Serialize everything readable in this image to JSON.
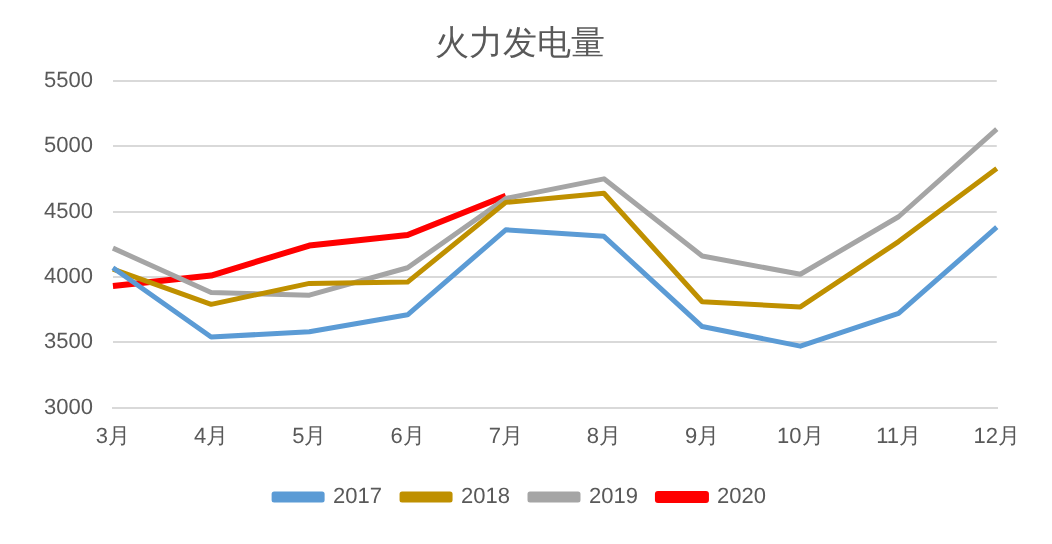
{
  "chart_data": {
    "type": "line",
    "title": "火力发电量",
    "categories": [
      "3月",
      "4月",
      "5月",
      "6月",
      "7月",
      "8月",
      "9月",
      "10月",
      "11月",
      "12月"
    ],
    "series": [
      {
        "name": "2017",
        "color": "#5b9bd5",
        "values": [
          4070,
          3540,
          3580,
          3710,
          4360,
          4310,
          3620,
          3470,
          3720,
          4380
        ]
      },
      {
        "name": "2018",
        "color": "#bf9000",
        "values": [
          4060,
          3790,
          3950,
          3960,
          4570,
          4640,
          3810,
          3770,
          4270,
          4830
        ]
      },
      {
        "name": "2019",
        "color": "#a5a5a5",
        "values": [
          4220,
          3880,
          3860,
          4070,
          4600,
          4750,
          4160,
          4020,
          4460,
          5130
        ]
      },
      {
        "name": "2020",
        "color": "#ff0000",
        "values": [
          3930,
          4010,
          4240,
          4320,
          4620,
          null,
          null,
          null,
          null,
          null
        ]
      }
    ],
    "ylim": [
      3000,
      5500
    ],
    "yticks": [
      3000,
      3500,
      4000,
      4500,
      5000,
      5500
    ],
    "grid": "y",
    "legend": "bottom",
    "marker": "none"
  }
}
